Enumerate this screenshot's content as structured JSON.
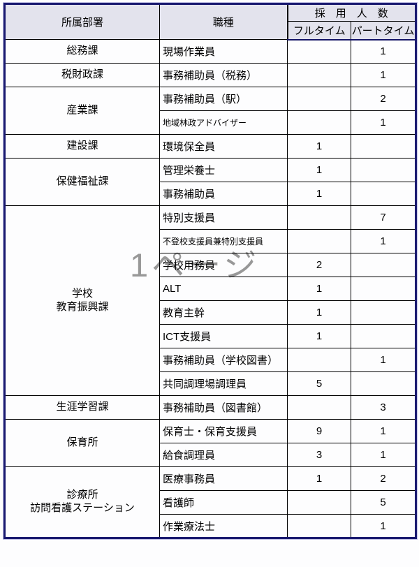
{
  "table": {
    "headers": {
      "department": "所属部署",
      "job_type": "職種",
      "hires_group": "採　用　人　数",
      "full_time": "フルタイム",
      "part_time": "パートタイム"
    },
    "departments": [
      {
        "name_lines": [
          "総務課"
        ],
        "jobs": [
          {
            "title": "現場作業員",
            "full_time": "",
            "part_time": "1"
          }
        ]
      },
      {
        "name_lines": [
          "税財政課"
        ],
        "jobs": [
          {
            "title": "事務補助員（税務）",
            "full_time": "",
            "part_time": "1"
          }
        ]
      },
      {
        "name_lines": [
          "産業課"
        ],
        "jobs": [
          {
            "title": "事務補助員（駅）",
            "full_time": "",
            "part_time": "2"
          },
          {
            "title": "地域林政アドバイザー",
            "full_time": "",
            "part_time": "1",
            "small_text": true
          }
        ]
      },
      {
        "name_lines": [
          "建設課"
        ],
        "jobs": [
          {
            "title": "環境保全員",
            "full_time": "1",
            "part_time": ""
          }
        ]
      },
      {
        "name_lines": [
          "保健福祉課"
        ],
        "jobs": [
          {
            "title": "管理栄養士",
            "full_time": "1",
            "part_time": ""
          },
          {
            "title": "事務補助員",
            "full_time": "1",
            "part_time": ""
          }
        ]
      },
      {
        "name_lines": [
          "学校",
          "教育振興課"
        ],
        "jobs": [
          {
            "title": "特別支援員",
            "full_time": "",
            "part_time": "7"
          },
          {
            "title": "不登校支援員兼特別支援員",
            "full_time": "",
            "part_time": "1",
            "small_text": true
          },
          {
            "title": "学校用務員",
            "full_time": "2",
            "part_time": ""
          },
          {
            "title": "ALT",
            "full_time": "1",
            "part_time": ""
          },
          {
            "title": "教育主幹",
            "full_time": "1",
            "part_time": ""
          },
          {
            "title": "ICT支援員",
            "full_time": "1",
            "part_time": ""
          },
          {
            "title": "事務補助員（学校図書）",
            "full_time": "",
            "part_time": "1"
          },
          {
            "title": "共同調理場調理員",
            "full_time": "5",
            "part_time": ""
          }
        ]
      },
      {
        "name_lines": [
          "生涯学習課"
        ],
        "jobs": [
          {
            "title": "事務補助員（図書館）",
            "full_time": "",
            "part_time": "3"
          }
        ]
      },
      {
        "name_lines": [
          "保育所"
        ],
        "jobs": [
          {
            "title": "保育士・保育支援員",
            "full_time": "9",
            "part_time": "1"
          },
          {
            "title": "給食調理員",
            "full_time": "3",
            "part_time": "1"
          }
        ]
      },
      {
        "name_lines": [
          "診療所",
          "訪問看護ステーション"
        ],
        "jobs": [
          {
            "title": "医療事務員",
            "full_time": "1",
            "part_time": "2"
          },
          {
            "title": "看護師",
            "full_time": "",
            "part_time": "5"
          },
          {
            "title": "作業療法士",
            "full_time": "",
            "part_time": "1"
          }
        ]
      }
    ]
  },
  "watermark": {
    "text": "1ページ"
  },
  "colors": {
    "outer_border": "#1a1a70",
    "grid_line": "#000000",
    "header_fill": "#e3e3ed",
    "watermark_color": "#989898"
  }
}
